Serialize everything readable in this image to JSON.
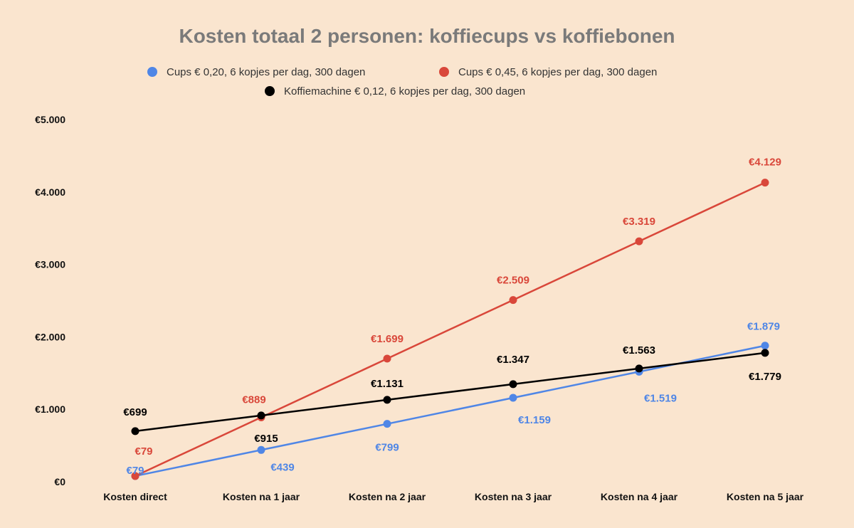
{
  "chart_data": {
    "type": "line",
    "title": "Kosten totaal 2 personen: koffiecups vs koffiebonen",
    "xlabel": "",
    "ylabel": "",
    "categories": [
      "Kosten direct",
      "Kosten na 1 jaar",
      "Kosten na 2 jaar",
      "Kosten na 3 jaar",
      "Kosten na 4 jaar",
      "Kosten na 5 jaar"
    ],
    "ylim": [
      0,
      5000
    ],
    "yticks": [
      0,
      1000,
      2000,
      3000,
      4000,
      5000
    ],
    "ytick_labels": [
      "€0",
      "€1.000",
      "€2.000",
      "€3.000",
      "€4.000",
      "€5.000"
    ],
    "grid": false,
    "legend_position": "top",
    "series": [
      {
        "name": "Cups € 0,20, 6 kopjes per dag, 300 dagen",
        "color": "#4f86e6",
        "values": [
          79,
          439,
          799,
          1159,
          1519,
          1879
        ],
        "labels": [
          "€79",
          "€439",
          "€799",
          "€1.159",
          "€1.519",
          "€1.879"
        ]
      },
      {
        "name": "Cups € 0,45, 6 kopjes per dag, 300 dagen",
        "color": "#d9473a",
        "values": [
          79,
          889,
          1699,
          2509,
          3319,
          4129
        ],
        "labels": [
          "€79",
          "€889",
          "€1.699",
          "€2.509",
          "€3.319",
          "€4.129"
        ]
      },
      {
        "name": "Koffiemachine € 0,12, 6 kopjes per dag, 300 dagen",
        "color": "#000000",
        "values": [
          699,
          915,
          1131,
          1347,
          1563,
          1779
        ],
        "labels": [
          "€699",
          "€915",
          "€1.131",
          "€1.347",
          "€1.563",
          "€1.779"
        ]
      }
    ]
  }
}
